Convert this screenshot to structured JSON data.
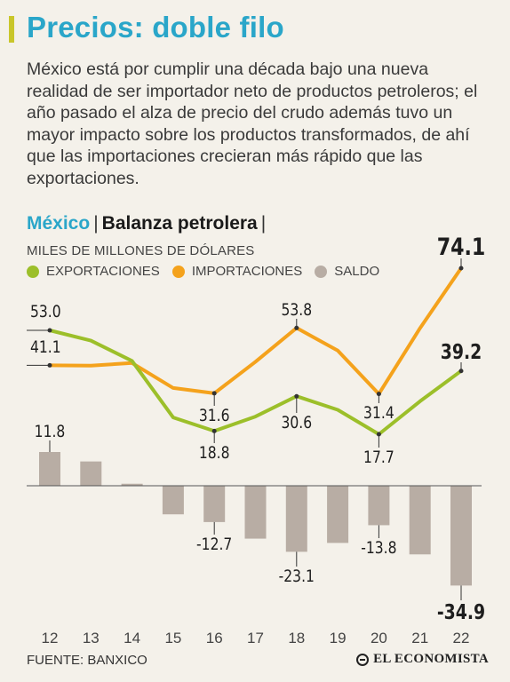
{
  "header": {
    "title": "Precios: doble filo",
    "lede": "México está por cumplir una década bajo una nueva realidad de ser importador neto de productos petroleros; el año pasado el alza de precio del crudo además tuvo un mayor impacto sobre los productos transformados, de ahí que las importaciones crecieran más rápido que las exportaciones."
  },
  "subtitle": {
    "country": "México",
    "sep1": "|",
    "topic": "Balanza petrolera",
    "sep2": "|"
  },
  "colors": {
    "exports": "#9cbf2a",
    "imports": "#f4a21c",
    "balance": "#b8ada4",
    "title": "#2aa6c9",
    "accent": "#c9c62a"
  },
  "chart_data": {
    "type": "line",
    "units": "MILES DE MILLONES DE DÓLARES",
    "categories": [
      "12",
      "13",
      "14",
      "15",
      "16",
      "17",
      "18",
      "19",
      "20",
      "21",
      "22"
    ],
    "series": [
      {
        "name": "EXPORTACIONES",
        "type": "line",
        "values": [
          53.0,
          49.5,
          42.6,
          23.4,
          18.8,
          23.7,
          30.6,
          26.0,
          17.7,
          28.9,
          39.2
        ]
      },
      {
        "name": "IMPORTACIONES",
        "type": "line",
        "values": [
          41.1,
          41.0,
          41.9,
          33.4,
          31.6,
          42.3,
          53.8,
          46.1,
          31.4,
          53.7,
          74.1
        ]
      },
      {
        "name": "SALDO",
        "type": "bar",
        "values": [
          11.8,
          8.5,
          0.7,
          -10.0,
          -12.7,
          -18.5,
          -23.1,
          -20.0,
          -13.8,
          -24.0,
          -34.9
        ]
      }
    ],
    "value_labels": [
      {
        "series": "EXPORTACIONES",
        "index": 0,
        "text": "53.0"
      },
      {
        "series": "EXPORTACIONES",
        "index": 4,
        "text": "18.8"
      },
      {
        "series": "EXPORTACIONES",
        "index": 6,
        "text": "30.6"
      },
      {
        "series": "EXPORTACIONES",
        "index": 8,
        "text": "17.7"
      },
      {
        "series": "EXPORTACIONES",
        "index": 10,
        "text": "39.2"
      },
      {
        "series": "IMPORTACIONES",
        "index": 0,
        "text": "41.1"
      },
      {
        "series": "IMPORTACIONES",
        "index": 4,
        "text": "31.6"
      },
      {
        "series": "IMPORTACIONES",
        "index": 6,
        "text": "53.8"
      },
      {
        "series": "IMPORTACIONES",
        "index": 8,
        "text": "31.4"
      },
      {
        "series": "IMPORTACIONES",
        "index": 10,
        "text": "74.1"
      },
      {
        "series": "SALDO",
        "index": 0,
        "text": "11.8"
      },
      {
        "series": "SALDO",
        "index": 4,
        "text": "-12.7"
      },
      {
        "series": "SALDO",
        "index": 6,
        "text": "-23.1"
      },
      {
        "series": "SALDO",
        "index": 8,
        "text": "-13.8"
      },
      {
        "series": "SALDO",
        "index": 10,
        "text": "-34.9"
      }
    ],
    "legend_position": "top-left",
    "grid": false
  },
  "footer": {
    "source": "FUENTE: BANXICO",
    "brand": "EL ECONOMISTA"
  }
}
